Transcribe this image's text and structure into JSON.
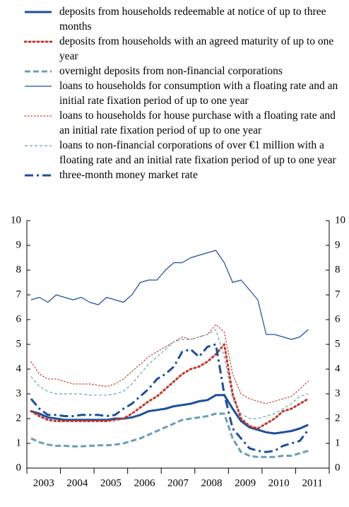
{
  "chart_data": {
    "type": "line",
    "categories": [
      "2003",
      null,
      null,
      null,
      "2004",
      null,
      null,
      null,
      "2005",
      null,
      null,
      null,
      "2006",
      null,
      null,
      null,
      "2007",
      null,
      null,
      null,
      "2008",
      null,
      null,
      null,
      "2009",
      null,
      null,
      null,
      "2010",
      null,
      null,
      null,
      "2011",
      null
    ],
    "ylim": [
      0,
      10
    ],
    "yticks": [
      0,
      1,
      2,
      3,
      4,
      5,
      6,
      7,
      8,
      9,
      10
    ],
    "right_axis_labels": true,
    "series": [
      {
        "name": "deposits from households redeemable at notice of up to three months",
        "color": "#1f4e9c",
        "line_style": "solid",
        "weight": "thick",
        "values": [
          2.3,
          2.2,
          2.05,
          2.0,
          1.95,
          1.95,
          1.95,
          1.95,
          1.95,
          1.95,
          2.0,
          2.0,
          2.05,
          2.15,
          2.3,
          2.35,
          2.4,
          2.5,
          2.55,
          2.6,
          2.7,
          2.75,
          2.95,
          2.95,
          2.4,
          1.9,
          1.65,
          1.55,
          1.45,
          1.4,
          1.45,
          1.5,
          1.6,
          1.75
        ]
      },
      {
        "name": "deposits from households with an agreed maturity of up to one year",
        "color": "#c0392b",
        "line_style": "dotted",
        "weight": "thick",
        "values": [
          2.3,
          2.1,
          1.95,
          1.9,
          1.9,
          1.9,
          1.9,
          1.9,
          1.9,
          1.9,
          1.95,
          2.0,
          2.2,
          2.45,
          2.7,
          2.9,
          3.2,
          3.5,
          3.8,
          4.0,
          4.1,
          4.3,
          4.6,
          5.0,
          3.0,
          2.0,
          1.7,
          1.6,
          1.8,
          2.0,
          2.3,
          2.4,
          2.6,
          2.8
        ]
      },
      {
        "name": "overnight deposits from non-financial corporations",
        "color": "#6a9fb5",
        "line_style": "dashed",
        "weight": "thick",
        "values": [
          1.2,
          1.05,
          0.95,
          0.9,
          0.9,
          0.88,
          0.88,
          0.9,
          0.92,
          0.92,
          0.95,
          1.0,
          1.1,
          1.2,
          1.35,
          1.5,
          1.65,
          1.8,
          1.95,
          2.0,
          2.05,
          2.1,
          2.2,
          2.2,
          1.2,
          0.65,
          0.5,
          0.45,
          0.45,
          0.45,
          0.5,
          0.5,
          0.6,
          0.7
        ]
      },
      {
        "name": "loans to households for consumption with a floating rate and an initial rate fixation period of up to one year",
        "color": "#1f4e9c",
        "line_style": "solid",
        "weight": "thin",
        "values": [
          6.8,
          6.9,
          6.7,
          7.0,
          6.9,
          6.8,
          6.9,
          6.7,
          6.6,
          6.9,
          6.8,
          6.7,
          7.0,
          7.5,
          7.6,
          7.6,
          8.0,
          8.3,
          8.3,
          8.5,
          8.6,
          8.7,
          8.8,
          8.3,
          7.5,
          7.6,
          7.2,
          6.8,
          5.4,
          5.4,
          5.3,
          5.2,
          5.3,
          5.6
        ]
      },
      {
        "name": "loans to households for house purchase with a floating rate and an initial rate fixation period of up to one year",
        "color": "#c0392b",
        "line_style": "dotted",
        "weight": "thin",
        "values": [
          4.3,
          3.8,
          3.6,
          3.6,
          3.5,
          3.4,
          3.4,
          3.4,
          3.35,
          3.3,
          3.4,
          3.6,
          3.9,
          4.2,
          4.5,
          4.7,
          4.9,
          5.1,
          5.3,
          5.2,
          5.3,
          5.4,
          5.8,
          5.5,
          3.8,
          3.0,
          2.8,
          2.7,
          2.6,
          2.7,
          2.8,
          2.9,
          3.2,
          3.5
        ]
      },
      {
        "name": "loans to non-financial corporations of over €1 million with a floating rate and an initial rate fixation period of up to one year",
        "color": "#6a9fb5",
        "line_style": "dashed",
        "weight": "thin",
        "values": [
          3.7,
          3.3,
          3.1,
          3.0,
          3.0,
          3.0,
          3.0,
          2.95,
          2.95,
          2.95,
          3.0,
          3.1,
          3.4,
          3.8,
          4.2,
          4.5,
          4.8,
          5.1,
          5.2,
          5.2,
          5.3,
          5.4,
          5.6,
          4.5,
          2.8,
          2.2,
          2.0,
          2.0,
          2.1,
          2.2,
          2.4,
          2.6,
          2.9,
          3.0
        ]
      },
      {
        "name": "three-month money market rate",
        "color": "#1f4e9c",
        "line_style": "dashdot",
        "weight": "thick",
        "values": [
          2.8,
          2.4,
          2.15,
          2.15,
          2.1,
          2.1,
          2.15,
          2.15,
          2.15,
          2.1,
          2.15,
          2.4,
          2.6,
          2.9,
          3.2,
          3.6,
          3.8,
          4.1,
          4.7,
          4.8,
          4.5,
          4.9,
          5.0,
          3.0,
          1.6,
          1.2,
          0.8,
          0.7,
          0.65,
          0.7,
          0.9,
          1.0,
          1.1,
          1.55
        ]
      }
    ]
  }
}
